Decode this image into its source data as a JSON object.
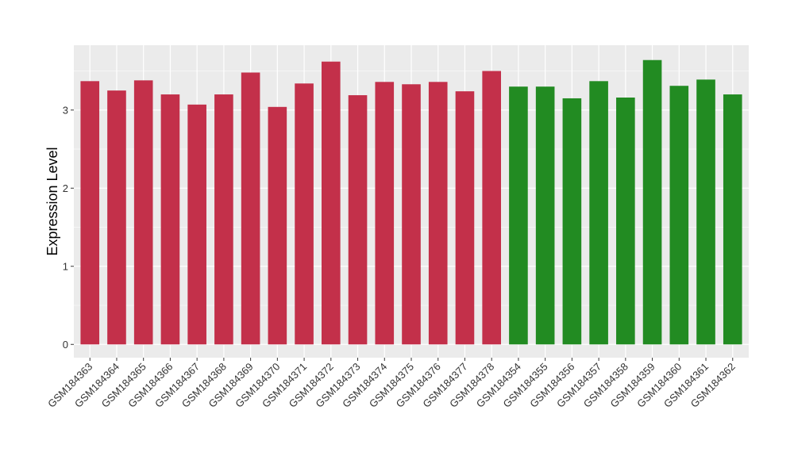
{
  "chart_data": {
    "type": "bar",
    "xlabel": "",
    "ylabel": "Expression Level",
    "ylim": [
      -0.17,
      3.83
    ],
    "yticks": [
      "0",
      "1",
      "2",
      "3"
    ],
    "grid": true,
    "legend": "none",
    "categories": [
      "GSM184363",
      "GSM184364",
      "GSM184365",
      "GSM184366",
      "GSM184367",
      "GSM184368",
      "GSM184369",
      "GSM184370",
      "GSM184371",
      "GSM184372",
      "GSM184373",
      "GSM184374",
      "GSM184375",
      "GSM184376",
      "GSM184377",
      "GSM184378",
      "GSM184354",
      "GSM184355",
      "GSM184356",
      "GSM184357",
      "GSM184358",
      "GSM184359",
      "GSM184360",
      "GSM184361",
      "GSM184362"
    ],
    "values": [
      3.37,
      3.25,
      3.38,
      3.2,
      3.07,
      3.2,
      3.48,
      3.04,
      3.34,
      3.62,
      3.19,
      3.36,
      3.33,
      3.36,
      3.24,
      3.5,
      3.3,
      3.3,
      3.15,
      3.37,
      3.16,
      3.64,
      3.31,
      3.39,
      3.2
    ],
    "bar_colors": [
      "#c3304a",
      "#c3304a",
      "#c3304a",
      "#c3304a",
      "#c3304a",
      "#c3304a",
      "#c3304a",
      "#c3304a",
      "#c3304a",
      "#c3304a",
      "#c3304a",
      "#c3304a",
      "#c3304a",
      "#c3304a",
      "#c3304a",
      "#c3304a",
      "#228b22",
      "#228b22",
      "#228b22",
      "#228b22",
      "#228b22",
      "#228b22",
      "#228b22",
      "#228b22",
      "#228b22"
    ],
    "panel_background": "#ebebeb",
    "grid_color": "#ffffff"
  }
}
